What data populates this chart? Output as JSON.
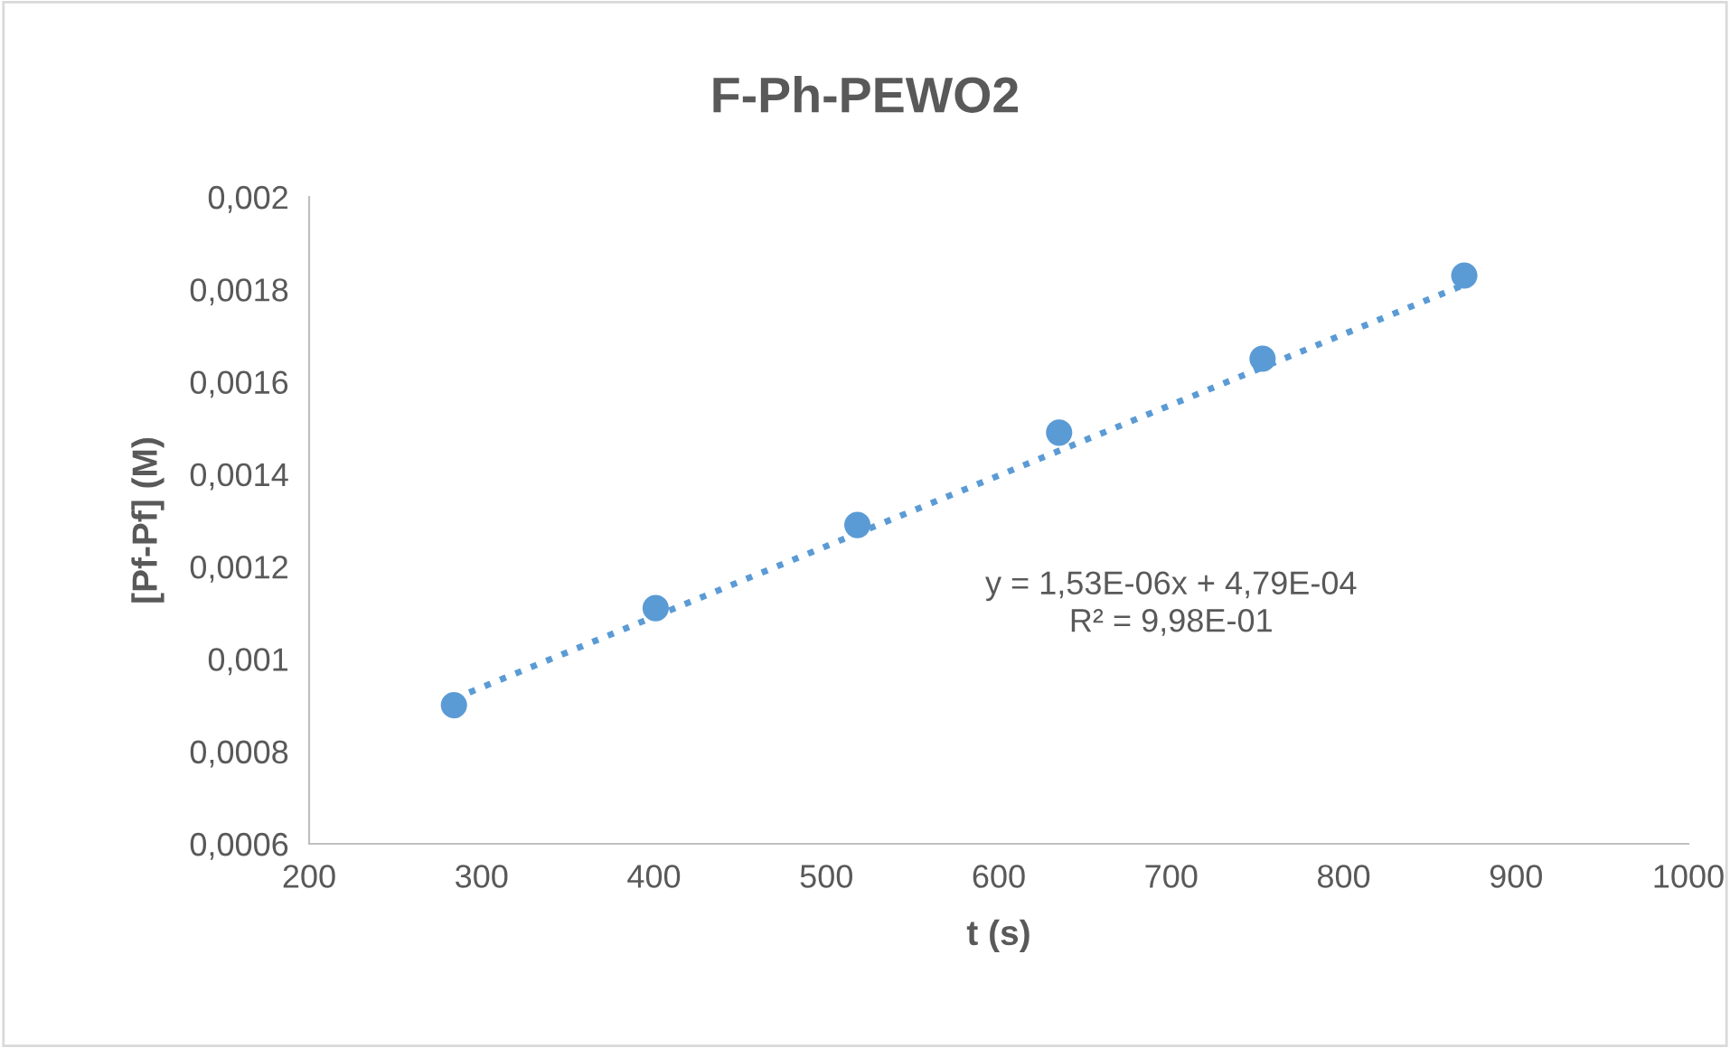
{
  "chart_data": {
    "type": "scatter",
    "title": "F-Ph-PEWO2",
    "xlabel": "t (s)",
    "ylabel": "[Pf-Pf] (M)",
    "x": [
      284,
      401,
      518,
      635,
      753,
      870
    ],
    "series": [
      {
        "color": "#5b9bd5",
        "marker": "circle",
        "values": [
          0.0009,
          0.00111,
          0.00129,
          0.00149,
          0.00165,
          0.00183
        ]
      },
      {
        "type": "line",
        "color": "#5b9bd5",
        "line_style": "dotted",
        "marker": "none",
        "x": [
          284,
          870
        ],
        "values": [
          0.000914,
          0.00181
        ]
      }
    ],
    "annotations": [
      "y = 1,53E-06x + 4,79E-04\nR² = 9,98E-01"
    ],
    "xlim": [
      200,
      1000
    ],
    "xticks": [
      200,
      300,
      400,
      500,
      600,
      700,
      800,
      900,
      1000
    ],
    "ylim": [
      0.0006,
      0.002
    ],
    "yticks": [
      {
        "value": 0.0006,
        "label": "0,0006"
      },
      {
        "value": 0.0008,
        "label": "0,0008"
      },
      {
        "value": 0.001,
        "label": "0,001"
      },
      {
        "value": 0.0012,
        "label": "0,0012"
      },
      {
        "value": 0.0014,
        "label": "0,0014"
      },
      {
        "value": 0.0016,
        "label": "0,0016"
      },
      {
        "value": 0.0018,
        "label": "0,0018"
      },
      {
        "value": 0.002,
        "label": "0,002"
      }
    ],
    "grid": false,
    "legend": false
  }
}
